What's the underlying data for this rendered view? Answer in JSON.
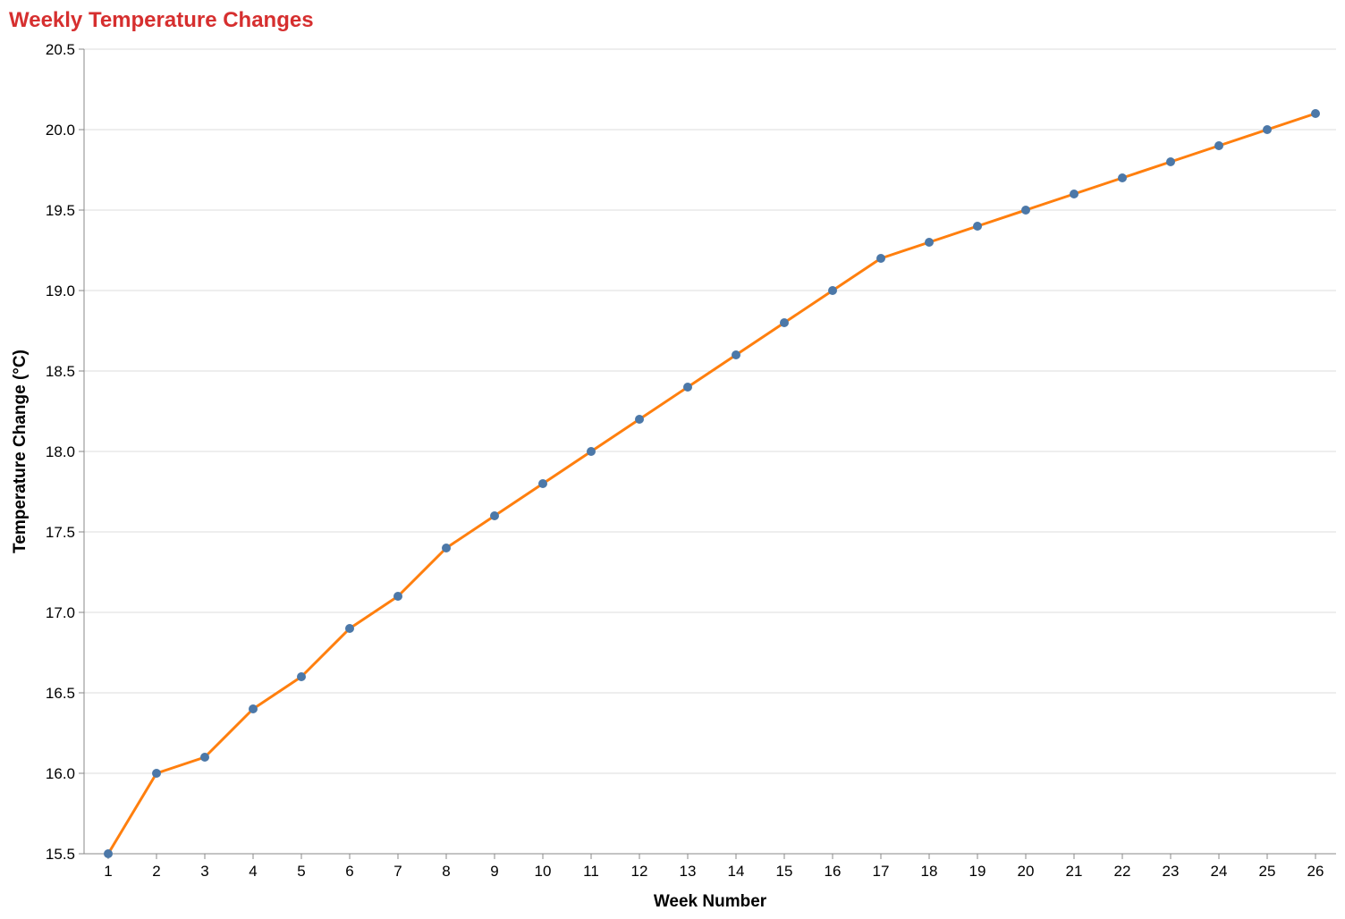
{
  "chart_data": {
    "type": "line",
    "title": "Weekly Temperature Changes",
    "xlabel": "Week Number",
    "ylabel": "Temperature Change (°C)",
    "x": [
      1,
      2,
      3,
      4,
      5,
      6,
      7,
      8,
      9,
      10,
      11,
      12,
      13,
      14,
      15,
      16,
      17,
      18,
      19,
      20,
      21,
      22,
      23,
      24,
      25,
      26
    ],
    "series": [
      {
        "values": [
          15.5,
          16.0,
          16.1,
          16.4,
          16.6,
          16.9,
          17.1,
          17.4,
          17.6,
          17.8,
          18.0,
          18.2,
          18.4,
          18.6,
          18.8,
          19.0,
          19.2,
          19.3,
          19.4,
          19.5,
          19.6,
          19.7,
          19.8,
          19.9,
          20.0,
          20.1
        ]
      }
    ],
    "ylim": [
      15.5,
      20.5
    ],
    "yticks": [
      "15.5",
      "16.0",
      "16.5",
      "17.0",
      "17.5",
      "18.0",
      "18.5",
      "19.0",
      "19.5",
      "20.0",
      "20.5"
    ],
    "grid": "horizontal",
    "colors": {
      "title": "#d62f2f",
      "line": "#ff7f0e",
      "point": "#4c78a8",
      "grid": "#dddddd",
      "axis": "#888888"
    }
  }
}
